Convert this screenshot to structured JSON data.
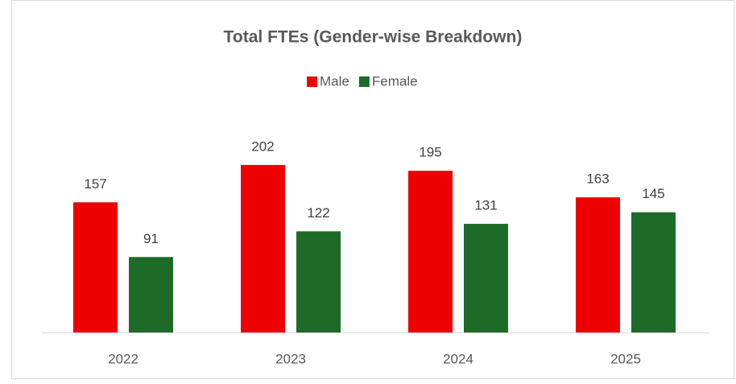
{
  "chart_data": {
    "type": "bar",
    "title": "Total FTEs (Gender-wise Breakdown)",
    "categories": [
      "2022",
      "2023",
      "2024",
      "2025"
    ],
    "series": [
      {
        "name": "Male",
        "color": "#ee0000",
        "values": [
          157,
          202,
          195,
          163
        ]
      },
      {
        "name": "Female",
        "color": "#1e6b27",
        "values": [
          91,
          122,
          131,
          145
        ]
      }
    ],
    "legend": "top"
  }
}
